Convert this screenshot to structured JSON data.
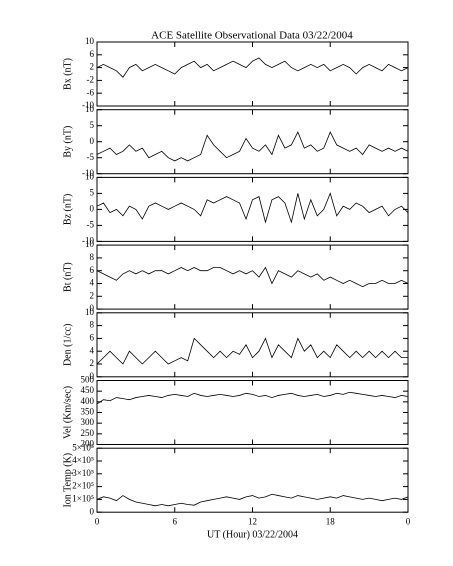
{
  "chart_data": [
    {
      "type": "line",
      "title": "ACE Satellite Observational Data   03/22/2004",
      "ylabel": "Bx (nT)",
      "x": [
        0,
        0.5,
        1,
        1.5,
        2,
        2.5,
        3,
        3.5,
        4,
        4.5,
        5,
        5.5,
        6,
        6.5,
        7,
        7.5,
        8,
        8.5,
        9,
        9.5,
        10,
        10.5,
        11,
        11.5,
        12,
        12.5,
        13,
        13.5,
        14,
        14.5,
        15,
        15.5,
        16,
        16.5,
        17,
        17.5,
        18,
        18.5,
        19,
        19.5,
        20,
        20.5,
        21,
        21.5,
        22,
        22.5,
        23,
        23.5,
        24
      ],
      "values": [
        2,
        3,
        2,
        1,
        -1,
        2,
        3,
        1,
        2,
        3,
        2,
        1,
        0,
        2,
        3,
        4,
        2,
        3,
        1,
        2,
        3,
        4,
        3,
        2,
        4,
        5,
        3,
        2,
        3,
        4,
        2,
        1,
        2,
        3,
        2,
        3,
        1,
        2,
        3,
        2,
        0,
        2,
        3,
        2,
        1,
        3,
        2,
        1,
        2
      ],
      "xlim": [
        0,
        24
      ],
      "ylim": [
        -10,
        10
      ],
      "yticks": [
        -10,
        -6,
        -2,
        2,
        6,
        10
      ],
      "color": "#000000"
    },
    {
      "type": "line",
      "ylabel": "By (nT)",
      "x": [
        0,
        0.5,
        1,
        1.5,
        2,
        2.5,
        3,
        3.5,
        4,
        4.5,
        5,
        5.5,
        6,
        6.5,
        7,
        7.5,
        8,
        8.5,
        9,
        9.5,
        10,
        10.5,
        11,
        11.5,
        12,
        12.5,
        13,
        13.5,
        14,
        14.5,
        15,
        15.5,
        16,
        16.5,
        17,
        17.5,
        18,
        18.5,
        19,
        19.5,
        20,
        20.5,
        21,
        21.5,
        22,
        22.5,
        23,
        23.5,
        24
      ],
      "values": [
        -4,
        -3,
        -2,
        -4,
        -3,
        -1,
        -3,
        -2,
        -5,
        -4,
        -3,
        -5,
        -6,
        -5,
        -6,
        -5,
        -4,
        2,
        -1,
        -3,
        -5,
        -4,
        -3,
        1,
        -2,
        -3,
        -1,
        -4,
        2,
        -2,
        -1,
        3,
        -2,
        -1,
        -3,
        -2,
        3,
        -1,
        -2,
        -3,
        -2,
        -4,
        -1,
        -2,
        -3,
        -2,
        -3,
        -2,
        -3
      ],
      "xlim": [
        0,
        24
      ],
      "ylim": [
        -10,
        10
      ],
      "yticks": [
        -10,
        -5,
        0,
        5,
        10
      ],
      "color": "#000000"
    },
    {
      "type": "line",
      "ylabel": "Bz (nT)",
      "x": [
        0,
        0.5,
        1,
        1.5,
        2,
        2.5,
        3,
        3.5,
        4,
        4.5,
        5,
        5.5,
        6,
        6.5,
        7,
        7.5,
        8,
        8.5,
        9,
        9.5,
        10,
        10.5,
        11,
        11.5,
        12,
        12.5,
        13,
        13.5,
        14,
        14.5,
        15,
        15.5,
        16,
        16.5,
        17,
        17.5,
        18,
        18.5,
        19,
        19.5,
        20,
        20.5,
        21,
        21.5,
        22,
        22.5,
        23,
        23.5,
        24
      ],
      "values": [
        1,
        2,
        -1,
        0,
        -2,
        1,
        0,
        -3,
        1,
        2,
        1,
        0,
        1,
        2,
        1,
        0,
        -2,
        3,
        2,
        3,
        4,
        3,
        2,
        -3,
        3,
        4,
        -4,
        3,
        4,
        2,
        -4,
        5,
        -3,
        3,
        -2,
        0,
        5,
        -2,
        1,
        0,
        2,
        1,
        -1,
        0,
        1,
        -2,
        0,
        1,
        -1
      ],
      "xlim": [
        0,
        24
      ],
      "ylim": [
        -10,
        10
      ],
      "yticks": [
        -10,
        -5,
        0,
        5,
        10
      ],
      "color": "#000000"
    },
    {
      "type": "line",
      "ylabel": "Bt (nT)",
      "x": [
        0,
        0.5,
        1,
        1.5,
        2,
        2.5,
        3,
        3.5,
        4,
        4.5,
        5,
        5.5,
        6,
        6.5,
        7,
        7.5,
        8,
        8.5,
        9,
        9.5,
        10,
        10.5,
        11,
        11.5,
        12,
        12.5,
        13,
        13.5,
        14,
        14.5,
        15,
        15.5,
        16,
        16.5,
        17,
        17.5,
        18,
        18.5,
        19,
        19.5,
        20,
        20.5,
        21,
        21.5,
        22,
        22.5,
        23,
        23.5,
        24
      ],
      "values": [
        6,
        5.5,
        5,
        4.5,
        5.5,
        6,
        5.5,
        6,
        5.5,
        6,
        6,
        5.5,
        6,
        6.5,
        6,
        6.5,
        6,
        6,
        6.5,
        6.5,
        6,
        5.5,
        6,
        5.5,
        6,
        5,
        6.5,
        4,
        6,
        5.5,
        5,
        6,
        5.5,
        5,
        5.5,
        4.5,
        5,
        4.5,
        4,
        4.5,
        4,
        3.5,
        4,
        4,
        4.5,
        4,
        4,
        4.5,
        4
      ],
      "xlim": [
        0,
        24
      ],
      "ylim": [
        0,
        10
      ],
      "yticks": [
        0,
        2,
        4,
        6,
        8,
        10
      ],
      "color": "#000000"
    },
    {
      "type": "line",
      "ylabel": "Den (1/cc)",
      "x": [
        0,
        0.5,
        1,
        1.5,
        2,
        2.5,
        3,
        3.5,
        4,
        4.5,
        5,
        5.5,
        6,
        6.5,
        7,
        7.5,
        8,
        8.5,
        9,
        9.5,
        10,
        10.5,
        11,
        11.5,
        12,
        12.5,
        13,
        13.5,
        14,
        14.5,
        15,
        15.5,
        16,
        16.5,
        17,
        17.5,
        18,
        18.5,
        19,
        19.5,
        20,
        20.5,
        21,
        21.5,
        22,
        22.5,
        23,
        23.5,
        24
      ],
      "values": [
        2,
        3,
        4,
        3,
        2,
        4,
        3,
        2,
        3,
        4,
        3,
        2,
        2.5,
        3,
        2.5,
        6,
        5,
        4,
        3,
        4,
        3,
        4,
        3.5,
        5,
        3,
        4,
        6,
        3,
        5,
        4,
        3,
        6,
        4,
        5,
        3,
        4,
        3,
        5,
        4,
        3,
        4,
        3,
        4,
        3,
        4,
        3,
        4,
        3,
        3
      ],
      "xlim": [
        0,
        24
      ],
      "ylim": [
        0,
        10
      ],
      "yticks": [
        0,
        2,
        4,
        6,
        8,
        10
      ],
      "color": "#000000"
    },
    {
      "type": "line",
      "ylabel": "Vel (Km/sec)",
      "x": [
        0,
        0.5,
        1,
        1.5,
        2,
        2.5,
        3,
        3.5,
        4,
        4.5,
        5,
        5.5,
        6,
        6.5,
        7,
        7.5,
        8,
        8.5,
        9,
        9.5,
        10,
        10.5,
        11,
        11.5,
        12,
        12.5,
        13,
        13.5,
        14,
        14.5,
        15,
        15.5,
        16,
        16.5,
        17,
        17.5,
        18,
        18.5,
        19,
        19.5,
        20,
        20.5,
        21,
        21.5,
        22,
        22.5,
        23,
        23.5,
        24
      ],
      "values": [
        390,
        410,
        405,
        420,
        415,
        410,
        420,
        425,
        430,
        425,
        420,
        430,
        435,
        430,
        425,
        440,
        430,
        425,
        430,
        435,
        430,
        425,
        430,
        440,
        435,
        425,
        430,
        420,
        430,
        435,
        440,
        430,
        425,
        430,
        435,
        425,
        430,
        440,
        435,
        445,
        440,
        435,
        430,
        425,
        430,
        425,
        420,
        430,
        425
      ],
      "xlim": [
        0,
        24
      ],
      "ylim": [
        200,
        500
      ],
      "yticks": [
        200,
        250,
        300,
        350,
        400,
        450,
        500
      ],
      "color": "#000000"
    },
    {
      "type": "line",
      "ylabel": "Ion Temp (K)",
      "xlabel": "UT (Hour)   03/22/2004",
      "x": [
        0,
        0.5,
        1,
        1.5,
        2,
        2.5,
        3,
        3.5,
        4,
        4.5,
        5,
        5.5,
        6,
        6.5,
        7,
        7.5,
        8,
        8.5,
        9,
        9.5,
        10,
        10.5,
        11,
        11.5,
        12,
        12.5,
        13,
        13.5,
        14,
        14.5,
        15,
        15.5,
        16,
        16.5,
        17,
        17.5,
        18,
        18.5,
        19,
        19.5,
        20,
        20.5,
        21,
        21.5,
        22,
        22.5,
        23,
        23.5,
        24
      ],
      "values": [
        100000,
        120000,
        110000,
        90000,
        130000,
        100000,
        80000,
        70000,
        60000,
        50000,
        60000,
        50000,
        60000,
        70000,
        60000,
        55000,
        80000,
        90000,
        100000,
        110000,
        120000,
        110000,
        100000,
        120000,
        130000,
        110000,
        120000,
        140000,
        130000,
        120000,
        110000,
        130000,
        120000,
        110000,
        100000,
        110000,
        120000,
        110000,
        130000,
        120000,
        110000,
        100000,
        110000,
        100000,
        90000,
        100000,
        110000,
        100000,
        120000
      ],
      "xlim": [
        0,
        24
      ],
      "ylim": [
        0,
        500000
      ],
      "yticks": [
        0,
        {
          "value": 100000,
          "label": "1×10⁵"
        },
        {
          "value": 200000,
          "label": "2×10⁵"
        },
        {
          "value": 300000,
          "label": "3×10⁵"
        },
        {
          "value": 400000,
          "label": "4×10⁵"
        },
        {
          "value": 500000,
          "label": "5×10⁵"
        }
      ],
      "xticks": [
        0,
        6,
        12,
        18,
        {
          "value": 24,
          "label": "0"
        }
      ],
      "color": "#000000"
    }
  ]
}
